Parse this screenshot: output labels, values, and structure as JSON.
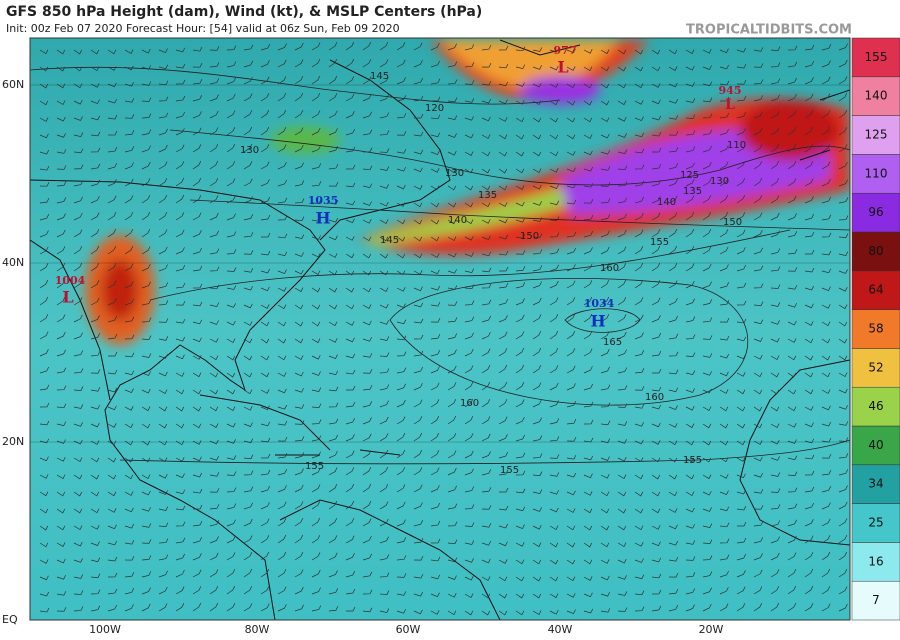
{
  "header": {
    "title": "GFS 850 hPa Height (dam), Wind (kt), & MSLP Centers (hPa)",
    "subtitle": "Init: 00z Feb 07 2020   Forecast Hour: [54]   valid at 06z Sun, Feb 09 2020",
    "credit": "TROPICALTIDBITS.COM"
  },
  "axes": {
    "lat_labels": [
      "60N",
      "40N",
      "20N",
      "EQ"
    ],
    "lon_labels": [
      "100W",
      "80W",
      "60W",
      "40W",
      "20W"
    ]
  },
  "colorbar": {
    "ticks": [
      7,
      16,
      25,
      34,
      40,
      46,
      52,
      58,
      64,
      80,
      96,
      110,
      125,
      140,
      155
    ],
    "colors": [
      "#e6fcfc",
      "#8ceaee",
      "#45c6ca",
      "#22a0a2",
      "#3aa64a",
      "#9ad24a",
      "#f0c040",
      "#f07a2a",
      "#c01818",
      "#7a1010",
      "#8a2be2",
      "#b060f0",
      "#e0a0f0",
      "#f080a0",
      "#e03050"
    ]
  },
  "centers": [
    {
      "pressure": "1004",
      "symbol": "L"
    },
    {
      "pressure": "1035",
      "symbol": "H"
    },
    {
      "pressure": "1034",
      "symbol": "H"
    },
    {
      "pressure": "945",
      "symbol": "L"
    },
    {
      "pressure": "977",
      "symbol": "L"
    }
  ],
  "contour_labels": [
    "145",
    "120",
    "130",
    "135",
    "140",
    "145",
    "150",
    "155",
    "160",
    "165",
    "160",
    "160",
    "155",
    "155",
    "155",
    "110",
    "125",
    "130",
    "135",
    "140",
    "150",
    "130"
  ]
}
